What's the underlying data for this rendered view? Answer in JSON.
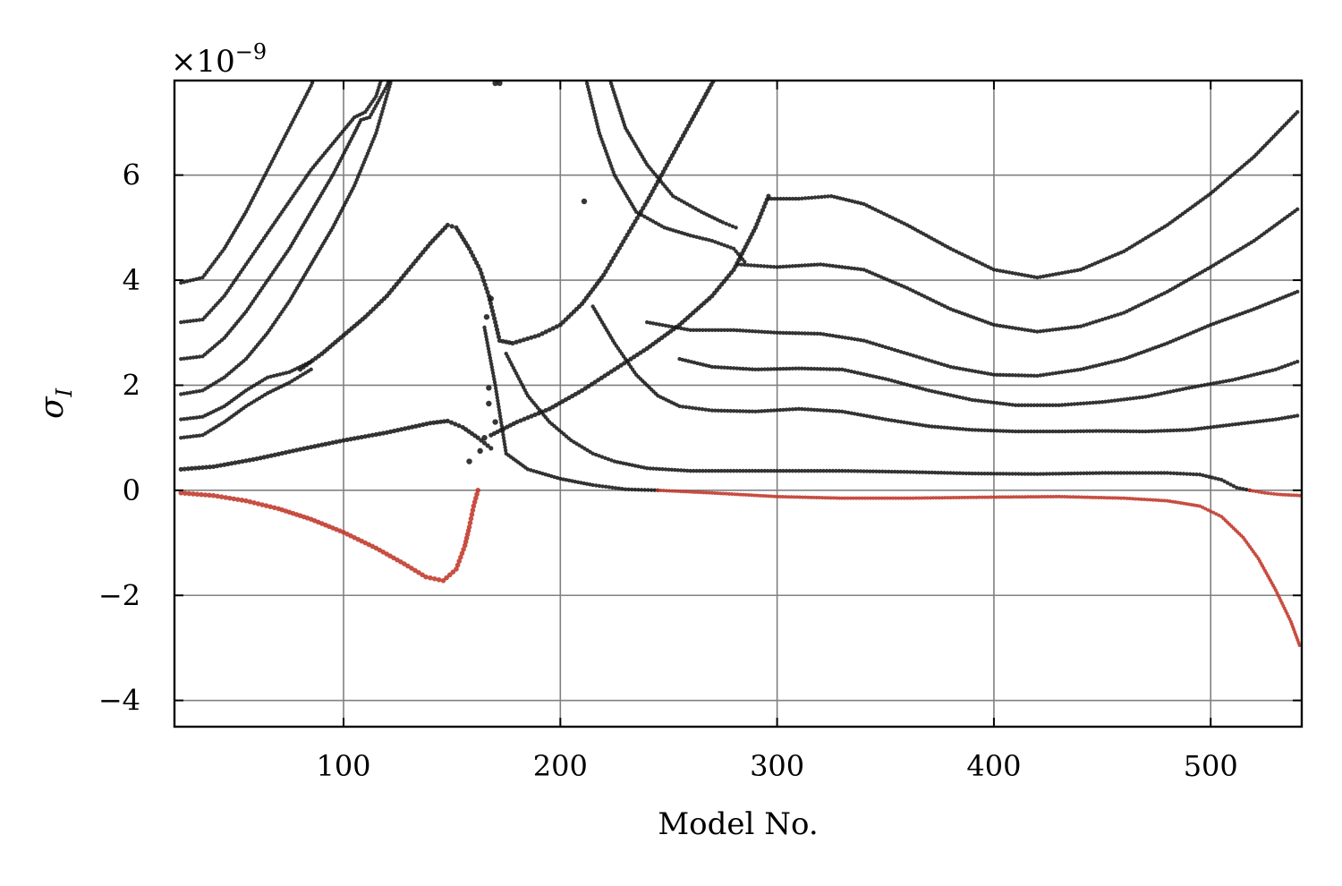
{
  "chart_data": {
    "type": "scatter",
    "xlabel": "Model No.",
    "ylabel": "σ",
    "ylabel_subscript": "I",
    "y_exponent_label": "×10",
    "y_exponent_power": "−9",
    "xlim": [
      22,
      542
    ],
    "ylim": [
      -4.5,
      7.8
    ],
    "x_ticks": [
      100,
      200,
      300,
      400,
      500
    ],
    "x_tick_labels": [
      "100",
      "200",
      "300",
      "400",
      "500"
    ],
    "y_ticks": [
      -4,
      -2,
      0,
      2,
      4,
      6
    ],
    "y_tick_labels": [
      "−4",
      "−2",
      "0",
      "2",
      "4",
      "6"
    ],
    "grid": true,
    "colors": {
      "stable": "#1a1a1a",
      "unstable": "#c0392b",
      "grid": "#808080"
    },
    "series": [
      {
        "color": "stable",
        "size": 2.2,
        "points": [
          [
            25,
            3.95
          ],
          [
            35,
            4.05
          ],
          [
            45,
            4.6
          ],
          [
            55,
            5.3
          ],
          [
            65,
            6.1
          ],
          [
            75,
            6.9
          ],
          [
            85,
            7.7
          ],
          [
            90,
            8.2
          ]
        ]
      },
      {
        "color": "stable",
        "size": 2.2,
        "points": [
          [
            25,
            3.2
          ],
          [
            35,
            3.25
          ],
          [
            45,
            3.7
          ],
          [
            55,
            4.3
          ],
          [
            65,
            4.9
          ],
          [
            75,
            5.5
          ],
          [
            85,
            6.1
          ],
          [
            95,
            6.6
          ],
          [
            105,
            7.1
          ],
          [
            110,
            7.2
          ],
          [
            115,
            7.5
          ],
          [
            118,
            7.9
          ]
        ]
      },
      {
        "color": "stable",
        "size": 2.2,
        "points": [
          [
            25,
            2.5
          ],
          [
            35,
            2.55
          ],
          [
            45,
            2.9
          ],
          [
            55,
            3.4
          ],
          [
            65,
            4.0
          ],
          [
            75,
            4.6
          ],
          [
            85,
            5.3
          ],
          [
            95,
            6.0
          ],
          [
            105,
            6.8
          ],
          [
            108,
            7.05
          ],
          [
            112,
            7.1
          ],
          [
            120,
            7.7
          ],
          [
            122,
            7.9
          ]
        ]
      },
      {
        "color": "stable",
        "size": 2.2,
        "points": [
          [
            25,
            1.83
          ],
          [
            35,
            1.9
          ],
          [
            45,
            2.15
          ],
          [
            55,
            2.5
          ],
          [
            65,
            3.0
          ],
          [
            75,
            3.6
          ],
          [
            85,
            4.3
          ],
          [
            95,
            5.0
          ],
          [
            105,
            5.8
          ],
          [
            115,
            6.8
          ],
          [
            122,
            7.8
          ]
        ]
      },
      {
        "color": "stable",
        "size": 2.2,
        "points": [
          [
            25,
            1.35
          ],
          [
            35,
            1.4
          ],
          [
            45,
            1.6
          ],
          [
            55,
            1.9
          ],
          [
            65,
            2.15
          ],
          [
            75,
            2.25
          ],
          [
            85,
            2.45
          ]
        ]
      },
      {
        "color": "stable",
        "size": 2.2,
        "points": [
          [
            25,
            1.0
          ],
          [
            35,
            1.05
          ],
          [
            45,
            1.3
          ],
          [
            55,
            1.6
          ],
          [
            65,
            1.85
          ],
          [
            75,
            2.05
          ],
          [
            85,
            2.3
          ]
        ]
      },
      {
        "color": "stable",
        "size": 2.6,
        "points": [
          [
            80,
            2.3
          ],
          [
            90,
            2.6
          ],
          [
            100,
            2.95
          ],
          [
            110,
            3.3
          ],
          [
            120,
            3.7
          ],
          [
            130,
            4.2
          ],
          [
            140,
            4.7
          ],
          [
            148,
            5.05
          ],
          [
            152,
            5.0
          ],
          [
            158,
            4.6
          ],
          [
            163,
            4.2
          ],
          [
            167,
            3.7
          ],
          [
            170,
            3.2
          ],
          [
            172,
            2.85
          ],
          [
            178,
            2.8
          ],
          [
            190,
            2.95
          ],
          [
            200,
            3.15
          ],
          [
            210,
            3.55
          ],
          [
            220,
            4.1
          ],
          [
            230,
            4.8
          ],
          [
            240,
            5.5
          ],
          [
            250,
            6.25
          ],
          [
            260,
            7.0
          ],
          [
            268,
            7.6
          ],
          [
            272,
            7.9
          ]
        ]
      },
      {
        "color": "stable",
        "size": 2.6,
        "points": [
          [
            25,
            0.4
          ],
          [
            40,
            0.45
          ],
          [
            60,
            0.6
          ],
          [
            80,
            0.78
          ],
          [
            100,
            0.95
          ],
          [
            120,
            1.1
          ],
          [
            140,
            1.28
          ],
          [
            148,
            1.32
          ],
          [
            155,
            1.2
          ],
          [
            162,
            1.0
          ],
          [
            168,
            0.8
          ]
        ]
      },
      {
        "color": "stable",
        "size": 2.6,
        "points": [
          [
            168,
            1.05
          ],
          [
            180,
            1.3
          ],
          [
            195,
            1.55
          ],
          [
            210,
            1.9
          ],
          [
            225,
            2.3
          ],
          [
            240,
            2.7
          ],
          [
            255,
            3.15
          ],
          [
            270,
            3.7
          ],
          [
            280,
            4.2
          ],
          [
            290,
            5.0
          ],
          [
            296,
            5.6
          ]
        ]
      },
      {
        "color": "stable",
        "size": 2.2,
        "points": [
          [
            296,
            5.55
          ],
          [
            310,
            5.55
          ],
          [
            325,
            5.6
          ],
          [
            340,
            5.45
          ],
          [
            360,
            5.05
          ],
          [
            380,
            4.6
          ],
          [
            400,
            4.2
          ],
          [
            420,
            4.05
          ],
          [
            440,
            4.2
          ],
          [
            460,
            4.55
          ],
          [
            480,
            5.05
          ],
          [
            500,
            5.65
          ],
          [
            520,
            6.35
          ],
          [
            540,
            7.2
          ]
        ]
      },
      {
        "color": "stable",
        "size": 2.2,
        "points": [
          [
            282,
            4.3
          ],
          [
            300,
            4.25
          ],
          [
            320,
            4.3
          ],
          [
            340,
            4.2
          ],
          [
            360,
            3.85
          ],
          [
            380,
            3.45
          ],
          [
            400,
            3.15
          ],
          [
            420,
            3.02
          ],
          [
            440,
            3.12
          ],
          [
            460,
            3.38
          ],
          [
            480,
            3.78
          ],
          [
            500,
            4.25
          ],
          [
            520,
            4.75
          ],
          [
            540,
            5.35
          ]
        ]
      },
      {
        "color": "stable",
        "size": 2.2,
        "points": [
          [
            240,
            3.2
          ],
          [
            260,
            3.05
          ],
          [
            280,
            3.05
          ],
          [
            300,
            3.0
          ],
          [
            320,
            2.98
          ],
          [
            340,
            2.85
          ],
          [
            360,
            2.6
          ],
          [
            380,
            2.35
          ],
          [
            400,
            2.2
          ],
          [
            420,
            2.18
          ],
          [
            440,
            2.3
          ],
          [
            460,
            2.5
          ],
          [
            480,
            2.8
          ],
          [
            500,
            3.15
          ],
          [
            520,
            3.45
          ],
          [
            540,
            3.78
          ]
        ]
      },
      {
        "color": "stable",
        "size": 2.2,
        "points": [
          [
            255,
            2.5
          ],
          [
            270,
            2.35
          ],
          [
            290,
            2.3
          ],
          [
            310,
            2.32
          ],
          [
            330,
            2.3
          ],
          [
            350,
            2.12
          ],
          [
            370,
            1.9
          ],
          [
            390,
            1.72
          ],
          [
            410,
            1.62
          ],
          [
            430,
            1.62
          ],
          [
            450,
            1.68
          ],
          [
            470,
            1.78
          ],
          [
            490,
            1.95
          ],
          [
            510,
            2.1
          ],
          [
            530,
            2.3
          ],
          [
            540,
            2.45
          ]
        ]
      },
      {
        "color": "stable",
        "size": 2.2,
        "points": [
          [
            215,
            3.5
          ],
          [
            225,
            2.8
          ],
          [
            235,
            2.2
          ],
          [
            245,
            1.8
          ],
          [
            255,
            1.6
          ],
          [
            270,
            1.52
          ],
          [
            290,
            1.5
          ],
          [
            310,
            1.55
          ],
          [
            330,
            1.5
          ],
          [
            350,
            1.35
          ],
          [
            370,
            1.22
          ],
          [
            390,
            1.15
          ],
          [
            410,
            1.12
          ],
          [
            430,
            1.12
          ],
          [
            450,
            1.13
          ],
          [
            470,
            1.12
          ],
          [
            490,
            1.15
          ],
          [
            510,
            1.25
          ],
          [
            530,
            1.35
          ],
          [
            540,
            1.42
          ]
        ]
      },
      {
        "color": "stable",
        "size": 2.2,
        "points": [
          [
            175,
            2.6
          ],
          [
            185,
            1.8
          ],
          [
            195,
            1.3
          ],
          [
            205,
            0.95
          ],
          [
            215,
            0.7
          ],
          [
            225,
            0.55
          ],
          [
            240,
            0.42
          ],
          [
            260,
            0.37
          ],
          [
            300,
            0.37
          ],
          [
            330,
            0.37
          ],
          [
            360,
            0.35
          ],
          [
            390,
            0.32
          ],
          [
            420,
            0.31
          ],
          [
            450,
            0.33
          ],
          [
            480,
            0.33
          ],
          [
            495,
            0.3
          ],
          [
            505,
            0.2
          ],
          [
            512,
            0.05
          ],
          [
            518,
            0.0
          ]
        ]
      },
      {
        "color": "stable",
        "size": 2.2,
        "points": [
          [
            165,
            3.1
          ],
          [
            170,
            2.0
          ],
          [
            175,
            0.7
          ],
          [
            185,
            0.4
          ],
          [
            200,
            0.22
          ],
          [
            215,
            0.1
          ],
          [
            230,
            0.02
          ],
          [
            245,
            0.0
          ]
        ]
      },
      {
        "color": "stable",
        "size": 2.2,
        "points": [
          [
            212,
            7.8
          ],
          [
            218,
            6.8
          ],
          [
            225,
            6.0
          ],
          [
            235,
            5.3
          ],
          [
            248,
            5.0
          ],
          [
            260,
            4.85
          ],
          [
            270,
            4.75
          ],
          [
            280,
            4.6
          ],
          [
            285,
            4.35
          ]
        ]
      },
      {
        "color": "stable",
        "size": 2.2,
        "points": [
          [
            223,
            7.8
          ],
          [
            230,
            6.9
          ],
          [
            240,
            6.2
          ],
          [
            252,
            5.6
          ],
          [
            265,
            5.3
          ],
          [
            275,
            5.1
          ],
          [
            281,
            5.0
          ]
        ]
      },
      {
        "color": "stable",
        "size": 3.2,
        "points": [
          [
            158,
            0.55
          ],
          [
            163,
            0.75
          ],
          [
            165,
            1.0
          ],
          [
            167,
            1.95
          ],
          [
            167,
            1.65
          ],
          [
            168,
            3.65
          ],
          [
            166,
            3.3
          ],
          [
            170,
            7.75
          ],
          [
            172,
            7.75
          ],
          [
            211,
            5.5
          ],
          [
            170,
            1.3
          ]
        ]
      },
      {
        "color": "unstable",
        "size": 2.8,
        "points": [
          [
            25,
            -0.05
          ],
          [
            40,
            -0.1
          ],
          [
            55,
            -0.2
          ],
          [
            70,
            -0.35
          ],
          [
            85,
            -0.55
          ],
          [
            100,
            -0.8
          ],
          [
            115,
            -1.1
          ],
          [
            128,
            -1.4
          ],
          [
            138,
            -1.65
          ],
          [
            146,
            -1.72
          ],
          [
            152,
            -1.5
          ],
          [
            156,
            -1.05
          ],
          [
            158,
            -0.7
          ],
          [
            160,
            -0.3
          ],
          [
            162,
            0.0
          ]
        ]
      },
      {
        "color": "unstable",
        "size": 2.0,
        "points": [
          [
            245,
            0.0
          ],
          [
            270,
            -0.05
          ],
          [
            300,
            -0.12
          ],
          [
            330,
            -0.15
          ],
          [
            360,
            -0.15
          ],
          [
            400,
            -0.13
          ],
          [
            430,
            -0.12
          ],
          [
            460,
            -0.15
          ],
          [
            480,
            -0.2
          ],
          [
            495,
            -0.3
          ],
          [
            505,
            -0.5
          ],
          [
            515,
            -0.9
          ],
          [
            522,
            -1.3
          ],
          [
            530,
            -1.9
          ],
          [
            537,
            -2.5
          ],
          [
            541,
            -2.95
          ]
        ]
      },
      {
        "color": "unstable",
        "size": 2.0,
        "points": [
          [
            518,
            0.0
          ],
          [
            525,
            -0.05
          ],
          [
            532,
            -0.08
          ],
          [
            541,
            -0.1
          ]
        ]
      }
    ]
  }
}
